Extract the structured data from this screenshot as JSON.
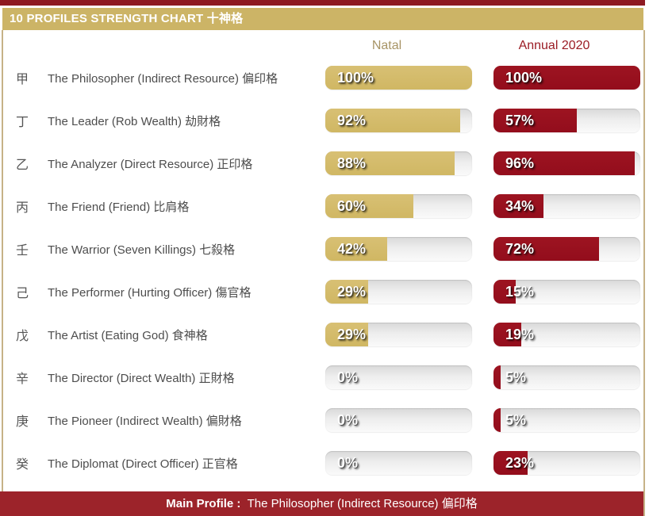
{
  "header": {
    "title": "10 PROFILES STRENGTH CHART 十神格"
  },
  "columns": {
    "natal": "Natal",
    "annual": "Annual 2020"
  },
  "colors": {
    "top_strip": "#8e1a22",
    "title_bar_gold": "#ccb466",
    "natal_fill_gold": "#d3ba67",
    "annual_fill_red": "#980f1e",
    "footer_red": "#9c232a",
    "natal_header_text": "#a79466",
    "annual_header_text": "#9b1c24",
    "row_label_text": "#4d4d4d",
    "track_gray": "#e6e6e6"
  },
  "rows": [
    {
      "stem": "甲",
      "label": "The Philosopher (Indirect Resource) 偏印格",
      "natal": 100,
      "natal_text": "100%",
      "annual": 100,
      "annual_text": "100%"
    },
    {
      "stem": "丁",
      "label": "The Leader (Rob Wealth) 劫財格",
      "natal": 92,
      "natal_text": "92%",
      "annual": 57,
      "annual_text": "57%"
    },
    {
      "stem": "乙",
      "label": "The Analyzer (Direct Resource) 正印格",
      "natal": 88,
      "natal_text": "88%",
      "annual": 96,
      "annual_text": "96%"
    },
    {
      "stem": "丙",
      "label": "The Friend (Friend) 比肩格",
      "natal": 60,
      "natal_text": "60%",
      "annual": 34,
      "annual_text": "34%"
    },
    {
      "stem": "壬",
      "label": "The Warrior (Seven Killings) 七殺格",
      "natal": 42,
      "natal_text": "42%",
      "annual": 72,
      "annual_text": "72%"
    },
    {
      "stem": "己",
      "label": "The Performer (Hurting Officer) 傷官格",
      "natal": 29,
      "natal_text": "29%",
      "annual": 15,
      "annual_text": "15%"
    },
    {
      "stem": "戊",
      "label": "The Artist (Eating God) 食神格",
      "natal": 29,
      "natal_text": "29%",
      "annual": 19,
      "annual_text": "19%"
    },
    {
      "stem": "辛",
      "label": "The Director (Direct Wealth) 正財格",
      "natal": 0,
      "natal_text": "0%",
      "annual": 5,
      "annual_text": "5%"
    },
    {
      "stem": "庚",
      "label": "The Pioneer (Indirect Wealth) 偏財格",
      "natal": 0,
      "natal_text": "0%",
      "annual": 5,
      "annual_text": "5%"
    },
    {
      "stem": "癸",
      "label": "The Diplomat (Direct Officer) 正官格",
      "natal": 0,
      "natal_text": "0%",
      "annual": 23,
      "annual_text": "23%"
    }
  ],
  "footer": {
    "label": "Main Profile :",
    "value": "The Philosopher (Indirect Resource) 偏印格"
  },
  "chart_data": {
    "type": "bar",
    "orientation": "horizontal",
    "title": "10 PROFILES STRENGTH CHART 十神格",
    "categories": [
      "The Philosopher (Indirect Resource) 偏印格",
      "The Leader (Rob Wealth) 劫財格",
      "The Analyzer (Direct Resource) 正印格",
      "The Friend (Friend) 比肩格",
      "The Warrior (Seven Killings) 七殺格",
      "The Performer (Hurting Officer) 傷官格",
      "The Artist (Eating God) 食神格",
      "The Director (Direct Wealth) 正財格",
      "The Pioneer (Indirect Wealth) 偏財格",
      "The Diplomat (Direct Officer) 正官格"
    ],
    "category_stems": [
      "甲",
      "丁",
      "乙",
      "丙",
      "壬",
      "己",
      "戊",
      "辛",
      "庚",
      "癸"
    ],
    "series": [
      {
        "name": "Natal",
        "color": "#d3ba67",
        "values": [
          100,
          92,
          88,
          60,
          42,
          29,
          29,
          0,
          0,
          0
        ]
      },
      {
        "name": "Annual 2020",
        "color": "#980f1e",
        "values": [
          100,
          57,
          96,
          34,
          72,
          15,
          19,
          5,
          5,
          23
        ]
      }
    ],
    "value_unit": "%",
    "xlim": [
      0,
      100
    ],
    "grid": false,
    "legend_position": "top",
    "annotation": "Main Profile : The Philosopher (Indirect Resource) 偏印格"
  }
}
